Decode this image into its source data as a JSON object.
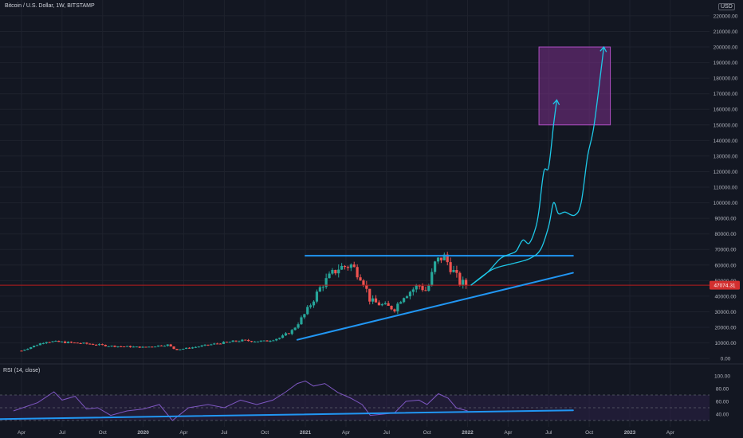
{
  "header": {
    "title": "Bitcoin / U.S. Dollar, 1W, BITSTAMP",
    "currency": "USD"
  },
  "rsi_panel": {
    "title": "RSI (14, close)"
  },
  "colors": {
    "background": "#131722",
    "grid": "#1e222d",
    "up": "#26a69a",
    "down": "#ef5350",
    "trendline": "#2196f3",
    "projection": "#1ec8e8",
    "target_zone_fill": "#7b2f8a",
    "target_zone_stroke": "#b04fc4",
    "price_line": "#b71c1c",
    "rsi_line": "#7e57c2",
    "rsi_band": "#2a1f45",
    "axis_text": "#b2b5be"
  },
  "chart_data": [
    {
      "type": "candlestick",
      "name": "price",
      "title": "Bitcoin / U.S. Dollar, 1W, BITSTAMP",
      "y_axis_label": "USD",
      "ylim": [
        -3000,
        222000
      ],
      "y_ticks": [
        "0.00",
        "10000.00",
        "20000.00",
        "30000.00",
        "40000.00",
        "50000.00",
        "60000.00",
        "70000.00",
        "80000.00",
        "90000.00",
        "100000.00",
        "110000.00",
        "120000.00",
        "130000.00",
        "140000.00",
        "150000.00",
        "160000.00",
        "170000.00",
        "180000.00",
        "190000.00",
        "200000.00",
        "210000.00",
        "220000.00"
      ],
      "x_ticks": [
        "Apr",
        "Jul",
        "Oct",
        "2020",
        "Apr",
        "Jul",
        "Oct",
        "2021",
        "Apr",
        "Jul",
        "Oct",
        "2022",
        "Apr",
        "Jul",
        "Oct",
        "2023",
        "Apr"
      ],
      "current_price": "47074.31",
      "close_path": [
        [
          2019.25,
          5000
        ],
        [
          2019.4,
          11000
        ],
        [
          2019.5,
          10500
        ],
        [
          2019.65,
          9500
        ],
        [
          2019.8,
          8000
        ],
        [
          2020.0,
          7200
        ],
        [
          2020.15,
          8800
        ],
        [
          2020.2,
          5600
        ],
        [
          2020.3,
          7000
        ],
        [
          2020.45,
          9500
        ],
        [
          2020.6,
          11500
        ],
        [
          2020.75,
          11000
        ],
        [
          2020.85,
          13500
        ],
        [
          2020.92,
          18000
        ],
        [
          2021.0,
          29000
        ],
        [
          2021.05,
          38000
        ],
        [
          2021.1,
          47000
        ],
        [
          2021.2,
          58000
        ],
        [
          2021.28,
          60000
        ],
        [
          2021.35,
          52000
        ],
        [
          2021.4,
          37000
        ],
        [
          2021.48,
          34000
        ],
        [
          2021.55,
          32000
        ],
        [
          2021.6,
          40000
        ],
        [
          2021.7,
          47000
        ],
        [
          2021.75,
          43000
        ],
        [
          2021.8,
          61000
        ],
        [
          2021.85,
          66000
        ],
        [
          2021.9,
          58000
        ],
        [
          2021.95,
          49000
        ],
        [
          2022.0,
          47000
        ]
      ],
      "zone_top_line": [
        [
          2021.0,
          66000
        ],
        [
          2022.65,
          66000
        ]
      ],
      "rising_trendline": [
        [
          2020.95,
          12000
        ],
        [
          2022.65,
          55000
        ]
      ],
      "target_zone": {
        "x": [
          2022.44,
          2022.88
        ],
        "y": [
          150000,
          200000
        ]
      },
      "projection_1": [
        [
          2022.02,
          47000
        ],
        [
          2022.12,
          55000
        ],
        [
          2022.2,
          64000
        ],
        [
          2022.26,
          67000
        ],
        [
          2022.3,
          69000
        ],
        [
          2022.34,
          76000
        ],
        [
          2022.38,
          74000
        ],
        [
          2022.42,
          84000
        ],
        [
          2022.44,
          95000
        ],
        [
          2022.47,
          120000
        ],
        [
          2022.5,
          123000
        ],
        [
          2022.53,
          150000
        ],
        [
          2022.55,
          166000
        ]
      ],
      "projection_2": [
        [
          2022.02,
          47000
        ],
        [
          2022.15,
          57000
        ],
        [
          2022.28,
          61000
        ],
        [
          2022.38,
          64000
        ],
        [
          2022.45,
          70000
        ],
        [
          2022.5,
          85000
        ],
        [
          2022.53,
          100000
        ],
        [
          2022.56,
          93000
        ],
        [
          2022.6,
          94000
        ],
        [
          2022.66,
          92000
        ],
        [
          2022.7,
          100000
        ],
        [
          2022.74,
          130000
        ],
        [
          2022.78,
          150000
        ],
        [
          2022.84,
          200000
        ]
      ]
    },
    {
      "type": "line",
      "name": "rsi",
      "title": "RSI (14, close)",
      "ylim": [
        25,
        105
      ],
      "y_ticks": [
        "100.00",
        "80.00",
        "60.00",
        "40.00"
      ],
      "band": [
        30,
        70
      ],
      "values": [
        [
          2019.2,
          45
        ],
        [
          2019.35,
          58
        ],
        [
          2019.45,
          75
        ],
        [
          2019.5,
          62
        ],
        [
          2019.58,
          68
        ],
        [
          2019.65,
          48
        ],
        [
          2019.72,
          50
        ],
        [
          2019.8,
          38
        ],
        [
          2019.9,
          45
        ],
        [
          2020.0,
          48
        ],
        [
          2020.1,
          55
        ],
        [
          2020.18,
          30
        ],
        [
          2020.28,
          50
        ],
        [
          2020.4,
          55
        ],
        [
          2020.5,
          50
        ],
        [
          2020.6,
          62
        ],
        [
          2020.7,
          55
        ],
        [
          2020.8,
          62
        ],
        [
          2020.88,
          75
        ],
        [
          2020.95,
          88
        ],
        [
          2021.0,
          92
        ],
        [
          2021.05,
          84
        ],
        [
          2021.12,
          88
        ],
        [
          2021.2,
          74
        ],
        [
          2021.28,
          65
        ],
        [
          2021.35,
          55
        ],
        [
          2021.4,
          38
        ],
        [
          2021.48,
          40
        ],
        [
          2021.55,
          42
        ],
        [
          2021.62,
          60
        ],
        [
          2021.7,
          62
        ],
        [
          2021.75,
          55
        ],
        [
          2021.82,
          72
        ],
        [
          2021.88,
          65
        ],
        [
          2021.93,
          50
        ],
        [
          2022.0,
          45
        ]
      ],
      "trendline": [
        [
          2019.05,
          32
        ],
        [
          2022.65,
          46
        ]
      ]
    }
  ]
}
